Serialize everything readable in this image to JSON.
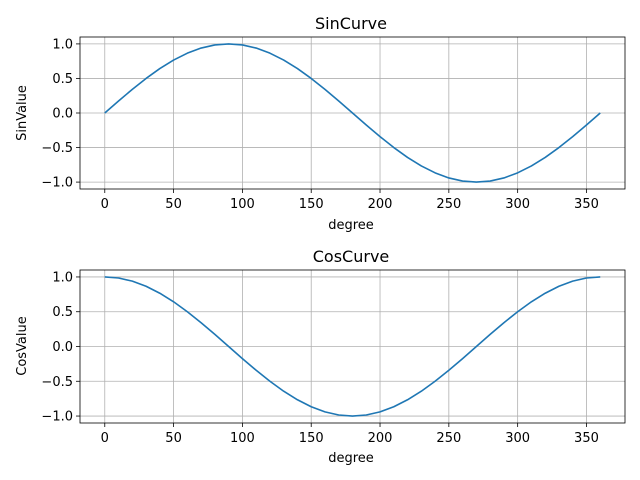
{
  "chart_data": [
    {
      "type": "line",
      "title": "SinCurve",
      "xlabel": "degree",
      "ylabel": "SinValue",
      "grid": true,
      "xlim": [
        -18,
        378
      ],
      "ylim": [
        -1.1,
        1.1
      ],
      "x_ticks": [
        0,
        50,
        100,
        150,
        200,
        250,
        300,
        350
      ],
      "x_tick_labels": [
        "0",
        "50",
        "100",
        "150",
        "200",
        "250",
        "300",
        "350"
      ],
      "y_ticks": [
        1.0,
        0.5,
        0.0,
        -0.5,
        -1.0
      ],
      "y_tick_labels": [
        "1.0",
        "0.5",
        "0.0",
        "−0.5",
        "−1.0"
      ],
      "series": [
        {
          "color": "#1f77b4",
          "x": [
            0,
            10,
            20,
            30,
            40,
            50,
            60,
            70,
            80,
            90,
            100,
            110,
            120,
            130,
            140,
            150,
            160,
            170,
            180,
            190,
            200,
            210,
            220,
            230,
            240,
            250,
            260,
            270,
            280,
            290,
            300,
            310,
            320,
            330,
            340,
            350,
            360
          ],
          "y": [
            0.0,
            0.174,
            0.342,
            0.5,
            0.643,
            0.766,
            0.866,
            0.94,
            0.985,
            1.0,
            0.985,
            0.94,
            0.866,
            0.766,
            0.643,
            0.5,
            0.342,
            0.174,
            0.0,
            -0.174,
            -0.342,
            -0.5,
            -0.643,
            -0.766,
            -0.866,
            -0.94,
            -0.985,
            -1.0,
            -0.985,
            -0.94,
            -0.866,
            -0.766,
            -0.643,
            -0.5,
            -0.342,
            -0.174,
            0.0
          ]
        }
      ]
    },
    {
      "type": "line",
      "title": "CosCurve",
      "xlabel": "degree",
      "ylabel": "CosValue",
      "grid": true,
      "xlim": [
        -18,
        378
      ],
      "ylim": [
        -1.1,
        1.1
      ],
      "x_ticks": [
        0,
        50,
        100,
        150,
        200,
        250,
        300,
        350
      ],
      "x_tick_labels": [
        "0",
        "50",
        "100",
        "150",
        "200",
        "250",
        "300",
        "350"
      ],
      "y_ticks": [
        1.0,
        0.5,
        0.0,
        -0.5,
        -1.0
      ],
      "y_tick_labels": [
        "1.0",
        "0.5",
        "0.0",
        "−0.5",
        "−1.0"
      ],
      "series": [
        {
          "color": "#1f77b4",
          "x": [
            0,
            10,
            20,
            30,
            40,
            50,
            60,
            70,
            80,
            90,
            100,
            110,
            120,
            130,
            140,
            150,
            160,
            170,
            180,
            190,
            200,
            210,
            220,
            230,
            240,
            250,
            260,
            270,
            280,
            290,
            300,
            310,
            320,
            330,
            340,
            350,
            360
          ],
          "y": [
            1.0,
            0.985,
            0.94,
            0.866,
            0.766,
            0.643,
            0.5,
            0.342,
            0.174,
            0.0,
            -0.174,
            -0.342,
            -0.5,
            -0.643,
            -0.766,
            -0.866,
            -0.94,
            -0.985,
            -1.0,
            -0.985,
            -0.94,
            -0.866,
            -0.766,
            -0.643,
            -0.5,
            -0.342,
            -0.174,
            0.0,
            0.174,
            0.342,
            0.5,
            0.643,
            0.766,
            0.866,
            0.94,
            0.985,
            1.0
          ]
        }
      ]
    }
  ]
}
